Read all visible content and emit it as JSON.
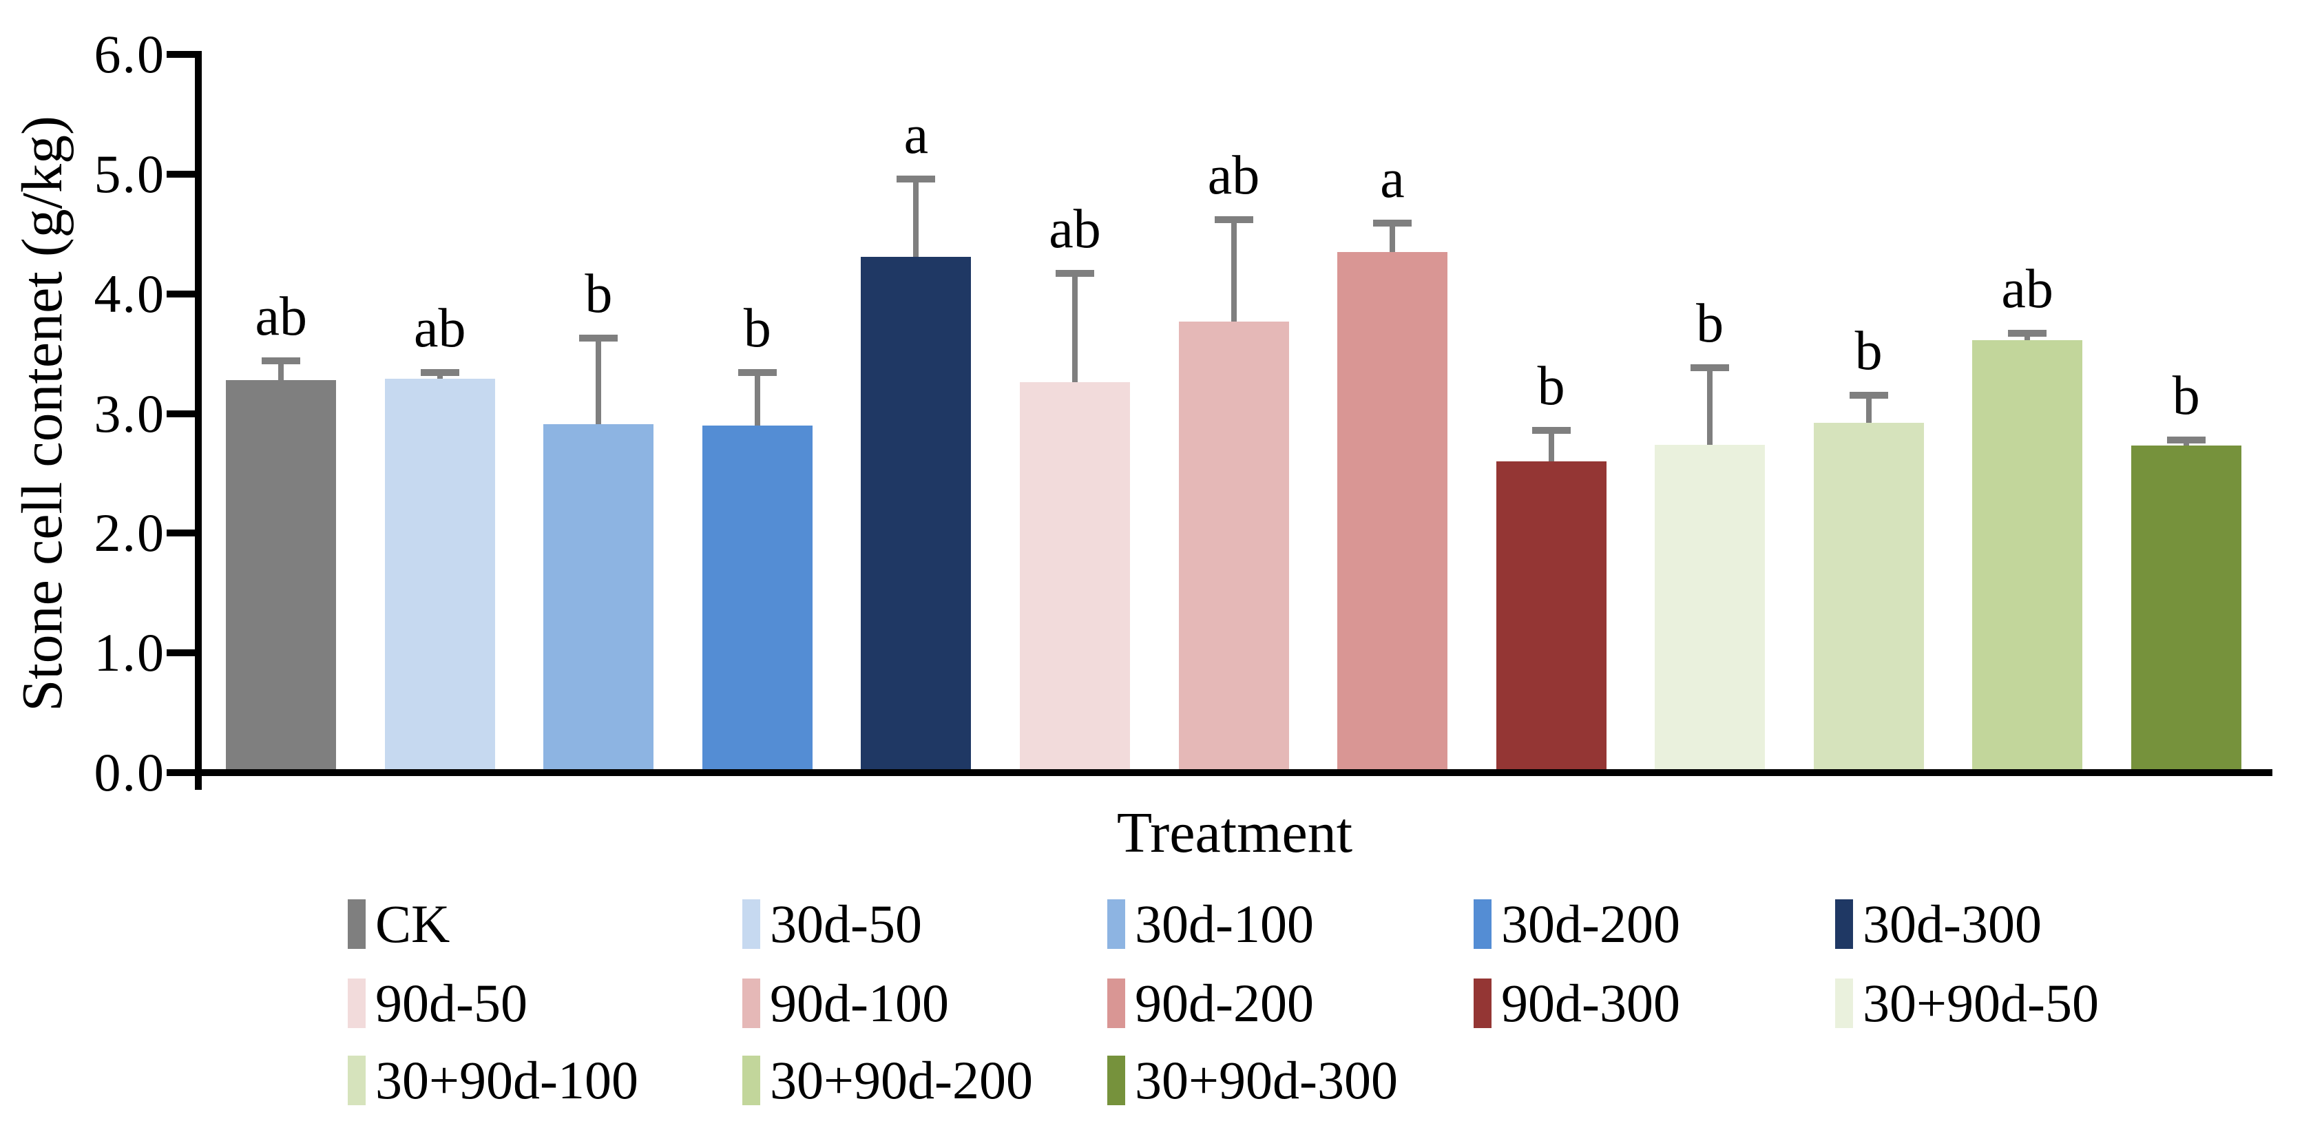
{
  "figure": {
    "y_axis_title": "Stone cell contenet (g/kg)",
    "x_axis_title": "Treatment"
  },
  "chart_data": {
    "type": "bar",
    "title": "",
    "xlabel": "Treatment",
    "ylabel": "Stone cell contenet (g/kg)",
    "ylim": [
      0,
      6
    ],
    "ytick_step": 1.0,
    "ytick_labels": [
      "0.0",
      "1.0",
      "2.0",
      "3.0",
      "4.0",
      "5.0",
      "6.0"
    ],
    "grid": false,
    "legend_position": "bottom",
    "categories": [
      "CK",
      "30d-50",
      "30d-100",
      "30d-200",
      "30d-300",
      "90d-50",
      "90d-100",
      "90d-200",
      "90d-300",
      "30+90d-50",
      "30+90d-100",
      "30+90d-200",
      "30+90d-300"
    ],
    "series": [
      {
        "name": "Stone cell content",
        "values": [
          3.28,
          3.29,
          2.91,
          2.9,
          4.31,
          3.26,
          3.77,
          4.35,
          2.6,
          2.74,
          2.92,
          3.61,
          2.73
        ],
        "errors_upper": [
          0.16,
          0.05,
          0.72,
          0.44,
          0.65,
          0.91,
          0.85,
          0.24,
          0.26,
          0.64,
          0.23,
          0.06,
          0.05
        ],
        "sig_letters": [
          "ab",
          "ab",
          "b",
          "b",
          "a",
          "ab",
          "ab",
          "a",
          "b",
          "b",
          "b",
          "ab",
          "b"
        ]
      }
    ],
    "bar_colors": [
      "#7F7F7F",
      "#C6D9F0",
      "#8DB4E2",
      "#548DD4",
      "#1F3864",
      "#F2DBDB",
      "#E5B8B7",
      "#D99694",
      "#943634",
      "#EAF1DD",
      "#D6E3BC",
      "#C2D69B",
      "#76923C"
    ],
    "error_bar_color": "#7F7F7F",
    "axis_color": "#000000",
    "legend_rows": [
      [
        "CK",
        "30d-50",
        "30d-100",
        "30d-200",
        "30d-300"
      ],
      [
        "90d-50",
        "90d-100",
        "90d-200",
        "90d-300",
        "30+90d-50"
      ],
      [
        "30+90d-100",
        "30+90d-200",
        "30+90d-300"
      ]
    ]
  }
}
